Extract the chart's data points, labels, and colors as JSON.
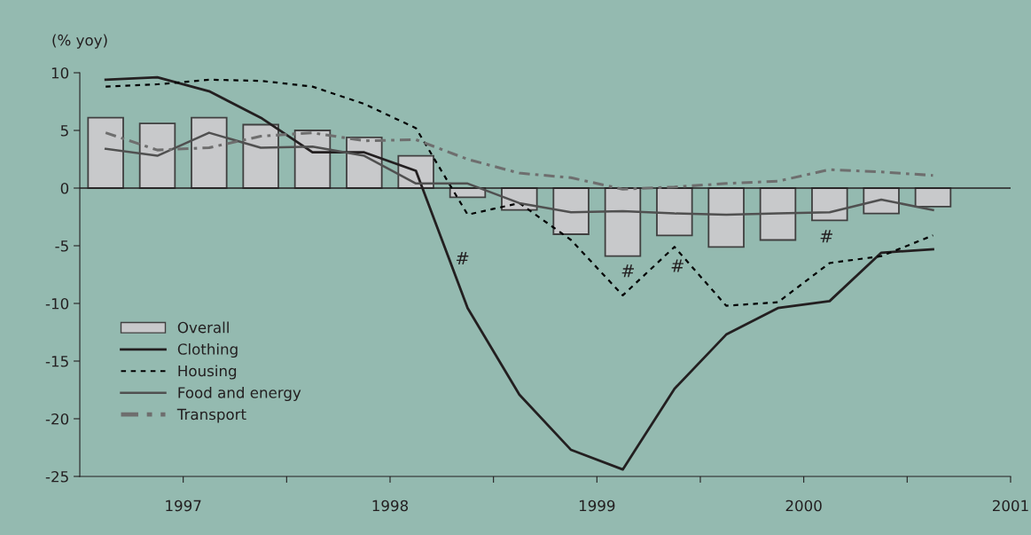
{
  "chart_data": {
    "type": "bar",
    "ylabel": "(% yoy)",
    "x": [
      1996.625,
      1996.875,
      1997.125,
      1997.375,
      1997.625,
      1997.875,
      1998.125,
      1998.375,
      1998.625,
      1998.875,
      1999.125,
      1999.375,
      1999.625,
      1999.875,
      2000.125,
      2000.375,
      2000.625
    ],
    "series": [
      {
        "name": "Overall",
        "type": "bar",
        "color": "#c8c9cb",
        "values": [
          6.1,
          5.6,
          6.1,
          5.5,
          5.0,
          4.4,
          2.8,
          -0.8,
          -1.9,
          -4.0,
          -5.9,
          -4.1,
          -5.1,
          -4.5,
          -2.8,
          -2.2,
          -1.6
        ]
      },
      {
        "name": "Clothing",
        "type": "line",
        "color": "#231f20",
        "line_style": "solid",
        "values": [
          9.4,
          9.6,
          8.4,
          6.1,
          3.1,
          3.1,
          1.5,
          -10.4,
          -17.9,
          -22.7,
          -24.4,
          -17.4,
          -12.7,
          -10.4,
          -9.8,
          -5.6,
          -5.3
        ]
      },
      {
        "name": "Housing",
        "type": "line",
        "color": "#000000",
        "line_style": "dotted",
        "values": [
          8.8,
          9.0,
          9.4,
          9.3,
          8.8,
          7.3,
          5.2,
          -2.3,
          -1.3,
          -4.5,
          -9.3,
          -5.1,
          -10.2,
          -9.9,
          -6.5,
          -5.9,
          -4.1
        ]
      },
      {
        "name": "Food and energy",
        "type": "line",
        "color": "#505050",
        "line_style": "solid",
        "values": [
          3.4,
          2.8,
          4.8,
          3.5,
          3.6,
          2.8,
          0.4,
          0.4,
          -1.3,
          -2.1,
          -2.0,
          -2.2,
          -2.3,
          -2.2,
          -2.1,
          -1.0,
          -1.9
        ]
      },
      {
        "name": "Transport",
        "type": "line",
        "color": "#6e6e6e",
        "line_style": "dashdot",
        "values": [
          4.8,
          3.3,
          3.5,
          4.5,
          4.8,
          4.1,
          4.2,
          2.5,
          1.3,
          0.9,
          -0.1,
          0.1,
          0.4,
          0.6,
          1.6,
          1.4,
          1.1
        ]
      }
    ],
    "xlim": [
      1996.5,
      2001.0
    ],
    "xticks": [
      1997,
      {
        "value": 1997.5,
        "label": null
      },
      1998,
      {
        "value": 1998.5,
        "label": null
      },
      1999,
      {
        "value": 1999.5,
        "label": null
      },
      2000,
      {
        "value": 2000.5,
        "label": null
      },
      2001
    ],
    "ylim": [
      -25,
      10
    ],
    "yticks": [
      -25,
      -20,
      -15,
      -10,
      -5,
      0,
      5,
      10
    ],
    "ref_lines": [
      {
        "axis": "y",
        "value": 0,
        "color": "#231f20"
      }
    ],
    "annotations": [
      "#",
      "#",
      "#",
      "#"
    ],
    "grid": false,
    "legend": "bottom left"
  }
}
